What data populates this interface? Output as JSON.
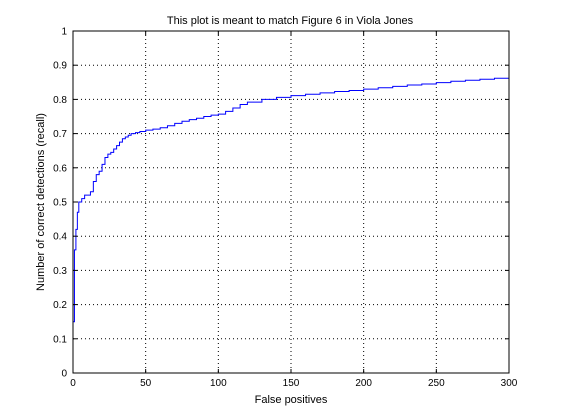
{
  "chart_data": {
    "type": "line",
    "title": "This plot is meant to match Figure 6 in Viola Jones",
    "xlabel": "False positives",
    "ylabel": "Number of correct detections (recall)",
    "xlim": [
      0,
      300
    ],
    "ylim": [
      0,
      1
    ],
    "xticks": [
      0,
      50,
      100,
      150,
      200,
      250,
      300
    ],
    "xtick_labels": [
      "0",
      "50",
      "100",
      "150",
      "200",
      "250",
      "300"
    ],
    "yticks": [
      0,
      0.1,
      0.2,
      0.3,
      0.4,
      0.5,
      0.6,
      0.7,
      0.8,
      0.9,
      1
    ],
    "ytick_labels": [
      "0",
      "0.1",
      "0.2",
      "0.3",
      "0.4",
      "0.5",
      "0.6",
      "0.7",
      "0.8",
      "0.9",
      "1"
    ],
    "grid": true,
    "line_color": "#0000ff",
    "series": [
      {
        "step": true,
        "x": [
          0,
          1,
          2,
          3,
          4,
          6,
          8,
          10,
          12,
          14,
          16,
          18,
          20,
          22,
          24,
          26,
          28,
          30,
          32,
          34,
          36,
          38,
          40,
          43,
          46,
          50,
          55,
          60,
          65,
          70,
          75,
          80,
          85,
          90,
          95,
          100,
          105,
          110,
          115,
          120,
          130,
          140,
          150,
          160,
          170,
          180,
          190,
          200,
          210,
          220,
          230,
          240,
          250,
          260,
          270,
          280,
          290,
          300
        ],
        "y": [
          0.15,
          0.36,
          0.42,
          0.47,
          0.5,
          0.51,
          0.52,
          0.52,
          0.53,
          0.56,
          0.58,
          0.59,
          0.61,
          0.63,
          0.64,
          0.645,
          0.655,
          0.665,
          0.675,
          0.685,
          0.69,
          0.695,
          0.7,
          0.703,
          0.706,
          0.71,
          0.713,
          0.717,
          0.723,
          0.73,
          0.736,
          0.741,
          0.745,
          0.75,
          0.754,
          0.757,
          0.765,
          0.775,
          0.785,
          0.792,
          0.8,
          0.806,
          0.811,
          0.815,
          0.819,
          0.823,
          0.826,
          0.83,
          0.834,
          0.838,
          0.842,
          0.845,
          0.849,
          0.853,
          0.856,
          0.859,
          0.862,
          0.865
        ]
      }
    ]
  }
}
